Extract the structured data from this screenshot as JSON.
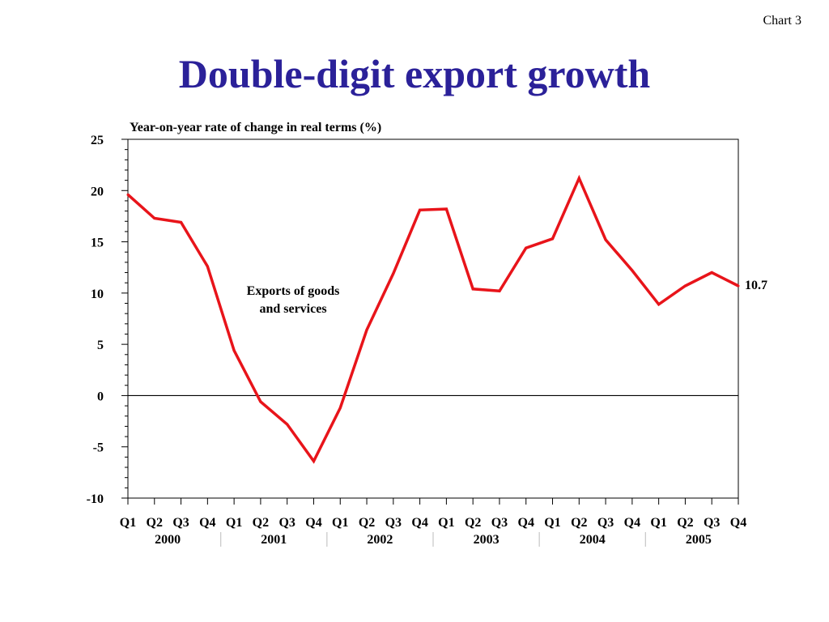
{
  "slide": {
    "chart_tag": "Chart 3",
    "title": "Double-digit export growth"
  },
  "colors": {
    "title": "#2b2199",
    "series_line": "#e8141a",
    "axis": "#000000"
  },
  "chart_data": {
    "type": "line",
    "title": "Double-digit export growth",
    "subtitle": "Year-on-year rate of change in real terms (%)",
    "xlabel": "",
    "ylabel": "",
    "ylim": [
      -10,
      25
    ],
    "yticks": [
      25,
      20,
      15,
      10,
      5,
      0,
      -5,
      -10
    ],
    "quarters": [
      "Q1",
      "Q2",
      "Q3",
      "Q4",
      "Q1",
      "Q2",
      "Q3",
      "Q4",
      "Q1",
      "Q2",
      "Q3",
      "Q4",
      "Q1",
      "Q2",
      "Q3",
      "Q4",
      "Q1",
      "Q2",
      "Q3",
      "Q4",
      "Q1",
      "Q2",
      "Q3",
      "Q4"
    ],
    "years": [
      "2000",
      "2001",
      "2002",
      "2003",
      "2004",
      "2005"
    ],
    "series": [
      {
        "name": "Exports of goods and services",
        "values": [
          19.6,
          17.3,
          16.9,
          12.6,
          4.4,
          -0.6,
          -2.8,
          -6.4,
          -1.2,
          6.4,
          11.9,
          18.1,
          18.2,
          10.4,
          10.2,
          14.4,
          15.3,
          21.2,
          15.2,
          12.2,
          8.9,
          10.7,
          12.0,
          10.7
        ]
      }
    ],
    "series_annotation_lines": [
      "Exports of goods",
      "and services"
    ],
    "end_label": "10.7",
    "zero_line": true,
    "grid": false,
    "legend": "none"
  }
}
